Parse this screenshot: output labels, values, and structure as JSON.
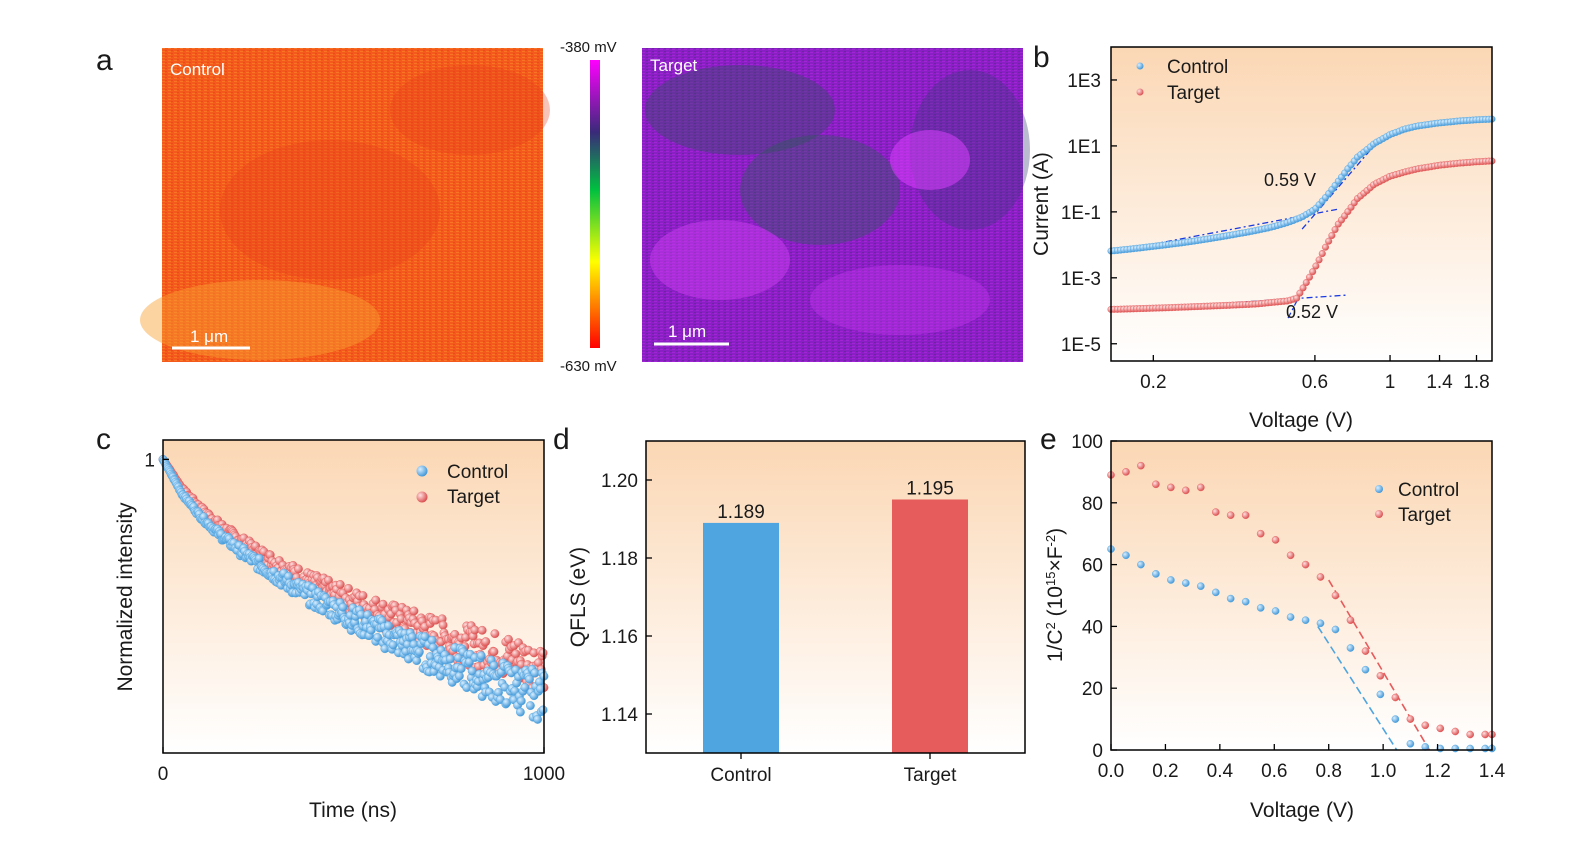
{
  "colors": {
    "control": "#4ea5e0",
    "target": "#e65b5b",
    "bg_top": "#fbd7b4",
    "bg_bottom": "#ffffff"
  },
  "panels": {
    "a": "a",
    "b": "b",
    "c": "c",
    "d": "d",
    "e": "e"
  },
  "chart_data": [
    {
      "id": "a",
      "type": "heatmap",
      "maps": [
        {
          "label": "Control",
          "scalebar": "1 μm",
          "dominant": "red-orange"
        },
        {
          "label": "Target",
          "scalebar": "1 μm",
          "dominant": "purple-magenta"
        }
      ],
      "colorbar": {
        "top": "-380 mV",
        "bottom": "-630 mV",
        "colors": [
          "#ff00ff",
          "#3a2a7a",
          "#00c040",
          "#ffff00",
          "#ff0000"
        ]
      }
    },
    {
      "id": "b",
      "type": "scatter",
      "xlabel": "Voltage (V)",
      "ylabel": "Current (A)",
      "xscale": "log",
      "yscale": "log",
      "xlim": [
        0.15,
        2.0
      ],
      "ylim": [
        3e-06,
        10000
      ],
      "xticks": [
        {
          "v": 0.2,
          "label": "0.2"
        },
        {
          "v": 0.6,
          "label": "0.6"
        },
        {
          "v": 1,
          "label": "1"
        },
        {
          "v": 1.4,
          "label": "1.4"
        },
        {
          "v": 1.8,
          "label": "1.8"
        }
      ],
      "yticks": [
        {
          "v": 1e-05,
          "label": "1E-5"
        },
        {
          "v": 0.001,
          "label": "1E-3"
        },
        {
          "v": 0.1,
          "label": "1E-1"
        },
        {
          "v": 10,
          "label": "1E1"
        },
        {
          "v": 1000,
          "label": "1E3"
        }
      ],
      "legend": "top-left",
      "series": [
        {
          "name": "Control",
          "color": "#4ea5e0",
          "x": [
            0.15,
            0.2,
            0.25,
            0.3,
            0.35,
            0.4,
            0.45,
            0.5,
            0.55,
            0.6,
            0.65,
            0.7,
            0.75,
            0.8,
            0.9,
            1.0,
            1.1,
            1.2,
            1.4,
            1.6,
            1.8,
            2.0
          ],
          "y": [
            0.0065,
            0.009,
            0.012,
            0.016,
            0.021,
            0.027,
            0.035,
            0.048,
            0.07,
            0.12,
            0.3,
            0.8,
            2.0,
            4.5,
            12,
            22,
            32,
            40,
            50,
            57,
            62,
            65
          ]
        },
        {
          "name": "Target",
          "color": "#e65b5b",
          "x": [
            0.15,
            0.2,
            0.25,
            0.3,
            0.35,
            0.4,
            0.45,
            0.5,
            0.53,
            0.56,
            0.6,
            0.65,
            0.7,
            0.8,
            0.9,
            1.0,
            1.1,
            1.2,
            1.4,
            1.6,
            1.8,
            2.0
          ],
          "y": [
            0.00011,
            0.00012,
            0.00013,
            0.00014,
            0.00015,
            0.00016,
            0.00018,
            0.0002,
            0.00024,
            0.0006,
            0.002,
            0.01,
            0.04,
            0.25,
            0.7,
            1.2,
            1.6,
            2.0,
            2.6,
            3.0,
            3.3,
            3.5
          ]
        }
      ],
      "annotations": [
        {
          "text": "0.59 V",
          "x": 0.59,
          "y": 0.09,
          "fits": [
            [
              0.15,
              0.006,
              0.7,
              0.12
            ],
            [
              0.55,
              0.03,
              0.95,
              20
            ]
          ]
        },
        {
          "text": "0.52 V",
          "x": 0.52,
          "y": 0.0002,
          "fits": [
            [
              0.15,
              0.0001,
              0.75,
              0.0003
            ],
            [
              0.5,
              6e-05,
              0.68,
              0.03
            ]
          ]
        }
      ]
    },
    {
      "id": "c",
      "type": "scatter",
      "xlabel": "Time (ns)",
      "ylabel": "Normalized intensity",
      "yscale": "log",
      "xlim": [
        0,
        1000
      ],
      "ylim": [
        0.12,
        1.15
      ],
      "xticks": [
        {
          "v": 0,
          "label": "0"
        },
        {
          "v": 1000,
          "label": "1000"
        }
      ],
      "yticks": [
        {
          "v": 1,
          "label": "1"
        }
      ],
      "legend": "top-right",
      "series": [
        {
          "name": "Control",
          "color": "#4ea5e0",
          "x": [
            0,
            50,
            100,
            150,
            200,
            250,
            300,
            350,
            400,
            450,
            500,
            550,
            600,
            650,
            700,
            750,
            800,
            850,
            900,
            950,
            1000
          ],
          "y": [
            1.0,
            0.78,
            0.66,
            0.58,
            0.52,
            0.47,
            0.43,
            0.395,
            0.365,
            0.34,
            0.315,
            0.295,
            0.275,
            0.258,
            0.243,
            0.23,
            0.218,
            0.207,
            0.197,
            0.188,
            0.18
          ]
        },
        {
          "name": "Target",
          "color": "#e65b5b",
          "x": [
            0,
            50,
            100,
            150,
            200,
            250,
            300,
            350,
            400,
            450,
            500,
            550,
            600,
            650,
            700,
            750,
            800,
            850,
            900,
            950,
            1000
          ],
          "y": [
            1.0,
            0.81,
            0.7,
            0.62,
            0.56,
            0.51,
            0.47,
            0.435,
            0.405,
            0.38,
            0.357,
            0.337,
            0.318,
            0.302,
            0.287,
            0.274,
            0.262,
            0.251,
            0.241,
            0.232,
            0.224
          ]
        }
      ]
    },
    {
      "id": "d",
      "type": "bar",
      "xlabel": "",
      "ylabel": "QFLS (eV)",
      "ylim": [
        1.13,
        1.21
      ],
      "yticks": [
        {
          "v": 1.14,
          "label": "1.14"
        },
        {
          "v": 1.16,
          "label": "1.16"
        },
        {
          "v": 1.18,
          "label": "1.18"
        },
        {
          "v": 1.2,
          "label": "1.20"
        }
      ],
      "categories": [
        "Control",
        "Target"
      ],
      "values": [
        1.189,
        1.195
      ],
      "value_labels": [
        "1.189",
        "1.195"
      ],
      "colors": [
        "#4ea5e0",
        "#e65b5b"
      ]
    },
    {
      "id": "e",
      "type": "scatter",
      "xlabel": "Voltage (V)",
      "ylabel_parts": [
        "1/C",
        "2",
        " (10",
        "15",
        "×F",
        "-2",
        ")"
      ],
      "xlim": [
        0,
        1.4
      ],
      "ylim": [
        0,
        100
      ],
      "xticks": [
        {
          "v": 0,
          "label": "0.0"
        },
        {
          "v": 0.2,
          "label": "0.2"
        },
        {
          "v": 0.4,
          "label": "0.4"
        },
        {
          "v": 0.6,
          "label": "0.6"
        },
        {
          "v": 0.8,
          "label": "0.8"
        },
        {
          "v": 1.0,
          "label": "1.0"
        },
        {
          "v": 1.2,
          "label": "1.2"
        },
        {
          "v": 1.4,
          "label": "1.4"
        }
      ],
      "yticks": [
        {
          "v": 0,
          "label": "0"
        },
        {
          "v": 20,
          "label": "20"
        },
        {
          "v": 40,
          "label": "40"
        },
        {
          "v": 60,
          "label": "60"
        },
        {
          "v": 80,
          "label": "80"
        },
        {
          "v": 100,
          "label": "100"
        }
      ],
      "legend": "right",
      "series": [
        {
          "name": "Control",
          "color": "#4ea5e0",
          "x": [
            0.0,
            0.055,
            0.11,
            0.165,
            0.22,
            0.275,
            0.33,
            0.385,
            0.44,
            0.495,
            0.55,
            0.605,
            0.66,
            0.715,
            0.77,
            0.825,
            0.88,
            0.935,
            0.99,
            1.045,
            1.1,
            1.155,
            1.21,
            1.265,
            1.32,
            1.375,
            1.4
          ],
          "y": [
            65,
            63,
            60,
            57,
            55,
            54,
            53,
            51,
            49,
            48,
            46,
            45,
            43,
            42,
            41,
            39,
            33,
            26,
            18,
            10,
            2,
            1,
            0.5,
            0.5,
            0.5,
            0.5,
            0.5
          ]
        },
        {
          "name": "Target",
          "color": "#e65b5b",
          "x": [
            0.0,
            0.055,
            0.11,
            0.165,
            0.22,
            0.275,
            0.33,
            0.385,
            0.44,
            0.495,
            0.55,
            0.605,
            0.66,
            0.715,
            0.77,
            0.825,
            0.88,
            0.935,
            0.99,
            1.045,
            1.1,
            1.155,
            1.21,
            1.265,
            1.32,
            1.375,
            1.4
          ],
          "y": [
            89,
            90,
            92,
            86,
            85,
            84,
            85,
            77,
            76,
            76,
            70,
            68,
            63,
            60,
            56,
            50,
            42,
            32,
            24,
            17,
            10,
            8,
            7,
            6,
            5,
            5,
            5
          ]
        }
      ],
      "fits": [
        {
          "color": "#4ea5e0",
          "x": [
            0.76,
            1.05
          ],
          "y": [
            40,
            0
          ]
        },
        {
          "color": "#e65b5b",
          "x": [
            0.8,
            1.17
          ],
          "y": [
            55,
            0
          ]
        }
      ]
    }
  ]
}
